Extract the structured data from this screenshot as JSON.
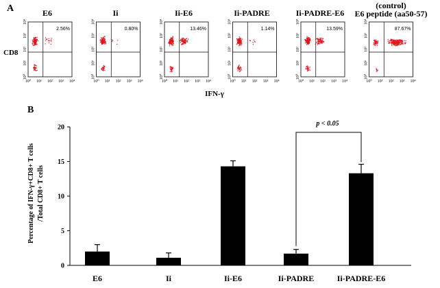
{
  "panel_a": {
    "letter": "A",
    "y_axis_label": "CD8",
    "x_axis_label": "IFN-γ",
    "tick_labels": [
      "10⁰",
      "10¹",
      "10²",
      "10³",
      "10⁴"
    ],
    "plots": [
      {
        "title": "E6",
        "title_line2": "",
        "percentage": "2.56%"
      },
      {
        "title": "Ii",
        "title_line2": "",
        "percentage": "0.80%"
      },
      {
        "title": "Ii-E6",
        "title_line2": "",
        "percentage": "13.46%"
      },
      {
        "title": "Ii-PADRE",
        "title_line2": "",
        "percentage": "1.14%"
      },
      {
        "title": "Ii-PADRE-E6",
        "title_line2": "",
        "percentage": "13.59%"
      },
      {
        "title": "(control)",
        "title_line2": "E6 peptide (aa50-57)",
        "percentage": "87.67%"
      }
    ],
    "dot_color": "#e0151b"
  },
  "panel_b": {
    "letter": "B",
    "significance": "p < 0.05"
  },
  "chart_data": {
    "type": "bar",
    "categories": [
      "E6",
      "Ii",
      "Ii-E6",
      "Ii-PADRE",
      "Ii-PADRE-E6"
    ],
    "values": [
      2.0,
      1.1,
      14.3,
      1.7,
      13.3
    ],
    "errors": [
      1.0,
      0.7,
      0.8,
      0.6,
      1.3
    ],
    "ylabel_line1": "Percentage of IFN-γ+CD8+ T cells",
    "ylabel_line2": "/Total CD8+ T cells",
    "ylim": [
      0,
      20
    ],
    "yticks": [
      "0",
      "5",
      "10",
      "15",
      "20"
    ],
    "bar_color": "#000000",
    "grid": false,
    "annotation": {
      "text": "p < 0.05",
      "between": [
        "Ii-PADRE",
        "Ii-PADRE-E6"
      ]
    }
  }
}
